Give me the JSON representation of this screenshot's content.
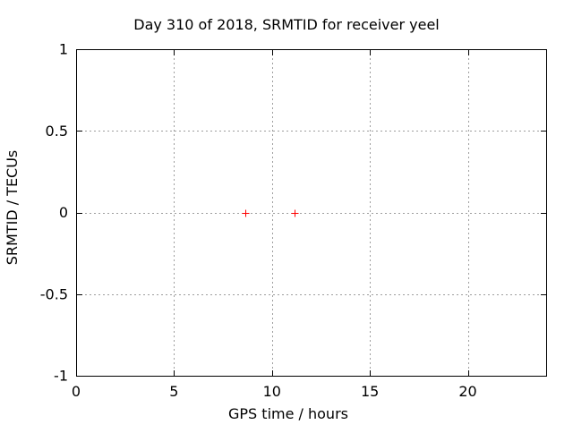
{
  "window": {
    "background": "#ffffff"
  },
  "chart_data": {
    "type": "scatter",
    "title": "Day 310 of 2018, SRMTID for receiver yeel",
    "xlabel": "GPS time / hours",
    "ylabel": "SRMTID / TECUs",
    "xlim": [
      0,
      24
    ],
    "ylim": [
      -1,
      1
    ],
    "xtick_values": [
      0,
      5,
      10,
      15,
      20
    ],
    "xtick_labels": [
      "0",
      "5",
      "10",
      "15",
      "20"
    ],
    "ytick_values": [
      -1,
      -0.5,
      0,
      0.5,
      1
    ],
    "ytick_labels": [
      "-1",
      "-0.5",
      "0",
      "0.5",
      "1"
    ],
    "grid": true,
    "grid_style": "dotted",
    "legend_position": "none",
    "colors": {
      "axis": "#000000",
      "grid": "#9e9e9e",
      "text": "#000000",
      "background": "#ffffff"
    },
    "series": [
      {
        "name": "SRMTID",
        "marker": "plus",
        "color": "#ff0000",
        "points": [
          [
            8.65,
            0
          ],
          [
            11.15,
            0
          ]
        ]
      }
    ]
  }
}
